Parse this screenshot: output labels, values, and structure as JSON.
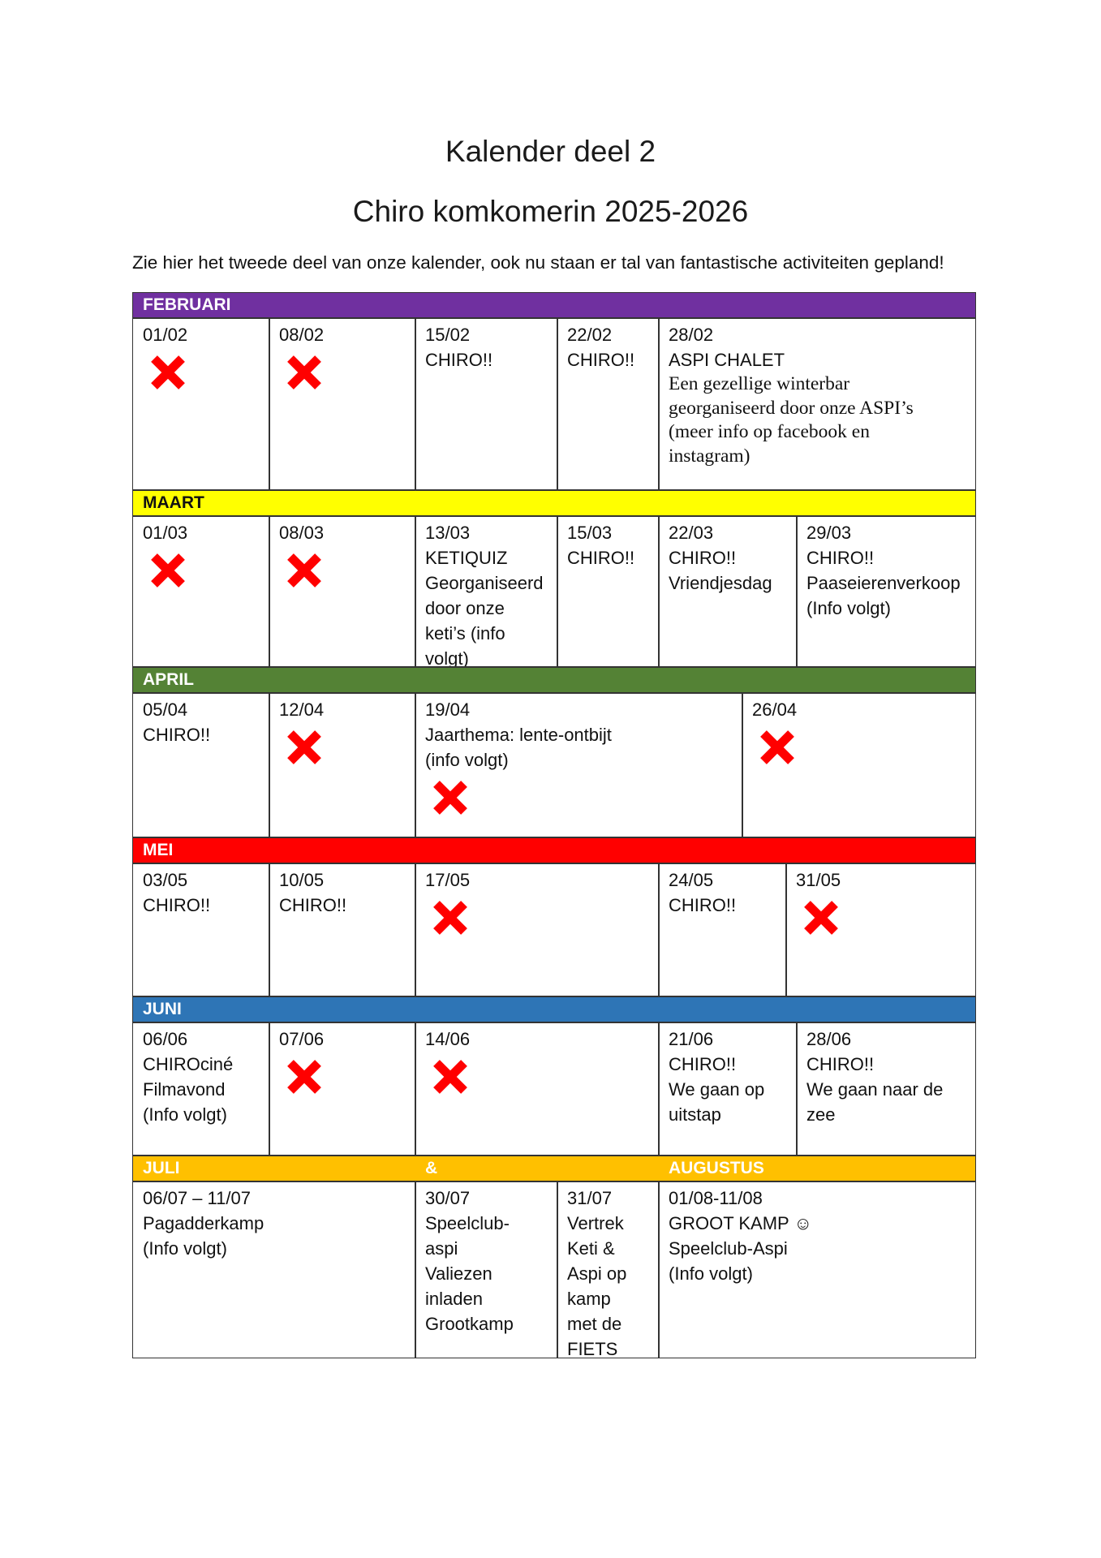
{
  "title": "Kalender deel 2",
  "subtitle": "Chiro komkomerin 2025-2026",
  "intro": "Zie hier het tweede deel van onze kalender, ook nu staan er tal van fantastische activiteiten gepland!",
  "colors": {
    "februari": "#7030a0",
    "maart": "#ffff00",
    "april": "#548235",
    "mei": "#ff0000",
    "juni": "#2e75b6",
    "zomer": "#ffc000",
    "cross": "#ff0000"
  },
  "months": {
    "februari": "FEBRUARI",
    "maart": "MAART",
    "april": "APRIL",
    "mei": "MEI",
    "juni": "JUNI",
    "juli": "JULI",
    "amp": "&",
    "augustus": "AUGUSTUS"
  },
  "events": {
    "feb01": {
      "date": "01/02",
      "cancelled": true
    },
    "feb08": {
      "date": "08/02",
      "cancelled": true
    },
    "feb15": {
      "date": "15/02",
      "lines": [
        "CHIRO!!"
      ]
    },
    "feb22": {
      "date": "22/02",
      "lines": [
        "CHIRO!!"
      ]
    },
    "feb28": {
      "date": "28/02",
      "lines": [
        "ASPI CHALET"
      ],
      "note": [
        "Een gezellige winterbar",
        "georganiseerd door onze ASPI’s",
        "(meer info op facebook en",
        "instagram)"
      ]
    },
    "mar01": {
      "date": "01/03",
      "cancelled": true
    },
    "mar08": {
      "date": "08/03",
      "cancelled": true
    },
    "mar13": {
      "date": "13/03",
      "lines": [
        " KETIQUIZ",
        "Georganiseerd",
        "door onze",
        "keti’s (info",
        "volgt)"
      ]
    },
    "mar15": {
      "date": "15/03",
      "lines": [
        "CHIRO!!"
      ]
    },
    "mar22": {
      "date": "22/03",
      "lines": [
        "CHIRO!!",
        "Vriendjesdag"
      ]
    },
    "mar29": {
      "date": "29/03",
      "lines": [
        "CHIRO!!",
        "Paaseierenverkoop",
        "(Info volgt)"
      ]
    },
    "apr05": {
      "date": "05/04",
      "lines": [
        "CHIRO!!"
      ]
    },
    "apr12": {
      "date": "12/04",
      "cancelled": true
    },
    "apr19": {
      "date": "19/04",
      "lines": [
        "Jaarthema: lente-ontbijt",
        "(info volgt)"
      ],
      "cancelled": true
    },
    "apr26": {
      "date": "26/04",
      "cancelled": true
    },
    "mei03": {
      "date": "03/05",
      "lines": [
        "CHIRO!!"
      ]
    },
    "mei10": {
      "date": "10/05",
      "lines": [
        "CHIRO!!"
      ]
    },
    "mei17": {
      "date": " 17/05",
      "cancelled": true
    },
    "mei24": {
      "date": "24/05",
      "lines": [
        "CHIRO!!"
      ]
    },
    "mei31": {
      "date": "31/05",
      "cancelled": true
    },
    "jun06": {
      "date": "06/06",
      "lines": [
        "CHIROciné",
        "Filmavond",
        "(Info volgt)"
      ]
    },
    "jun07": {
      "date": "07/06",
      "cancelled": true
    },
    "jun14": {
      "date": "14/06",
      "cancelled": true
    },
    "jun21": {
      "date": "21/06",
      "lines": [
        "CHIRO!!",
        "We gaan op",
        "uitstap"
      ]
    },
    "jun28": {
      "date": "28/06",
      "lines": [
        "CHIRO!!",
        "We gaan naar de",
        "zee"
      ]
    },
    "jul06": {
      "date": "06/07 – 11/07",
      "lines": [
        "Pagadderkamp",
        "(Info volgt)"
      ]
    },
    "jul30": {
      "date": "30/07",
      "lines": [
        "Speelclub-",
        "aspi",
        "Valiezen",
        "inladen",
        "Grootkamp"
      ]
    },
    "jul31": {
      "date": "31/07",
      "lines": [
        "Vertrek",
        "Keti &",
        "Aspi op",
        "kamp",
        "met de",
        "FIETS"
      ]
    },
    "aug01": {
      "date": "01/08-11/08",
      "lines": [
        "GROOT KAMP ☺",
        "Speelclub-Aspi",
        "(Info volgt)"
      ]
    }
  }
}
